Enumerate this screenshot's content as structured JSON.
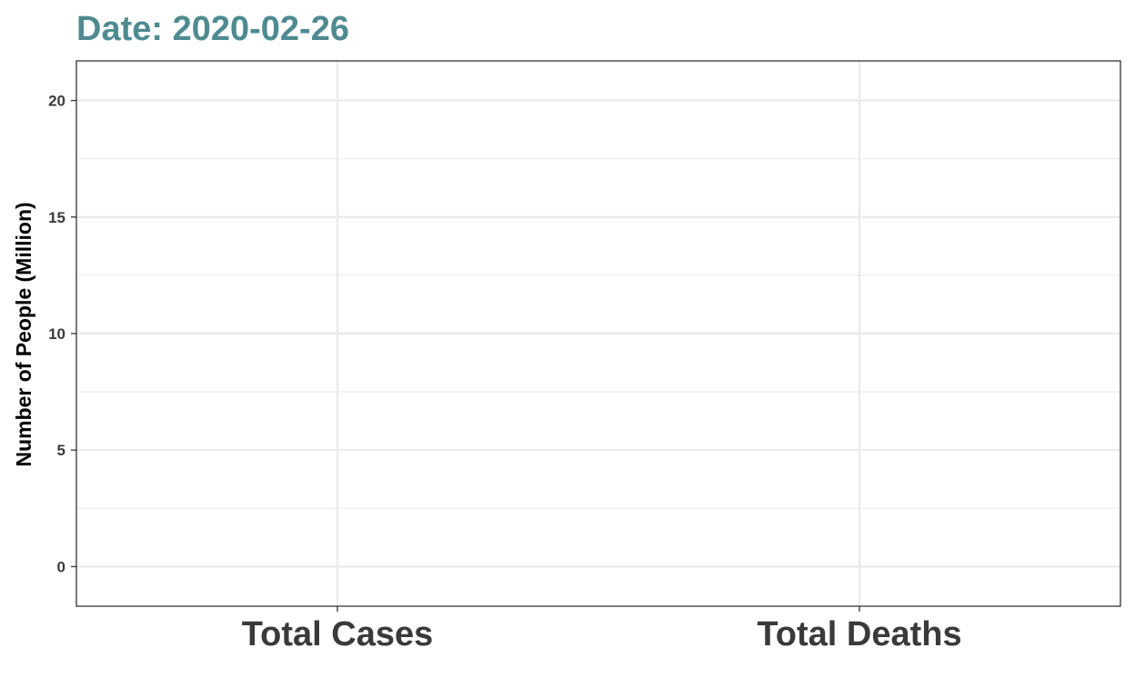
{
  "chart_data": {
    "type": "bar",
    "title": "Date: 2020-02-26",
    "title_color": "#4e8b91",
    "xlabel": "",
    "ylabel": "Number of People (Million)",
    "categories": [
      "Total Cases",
      "Total Deaths"
    ],
    "values": [
      0,
      0
    ],
    "ylim": [
      -1.7,
      21.7
    ],
    "yticks": [
      0,
      5,
      10,
      15,
      20
    ],
    "ytick_labels": [
      "0",
      "5",
      "10",
      "15",
      "20"
    ],
    "grid": true,
    "legend": "none",
    "colors": {
      "grid": "#ebebeb",
      "border": "#333333",
      "tick": "#333333",
      "text": "#3a3a3a"
    }
  }
}
